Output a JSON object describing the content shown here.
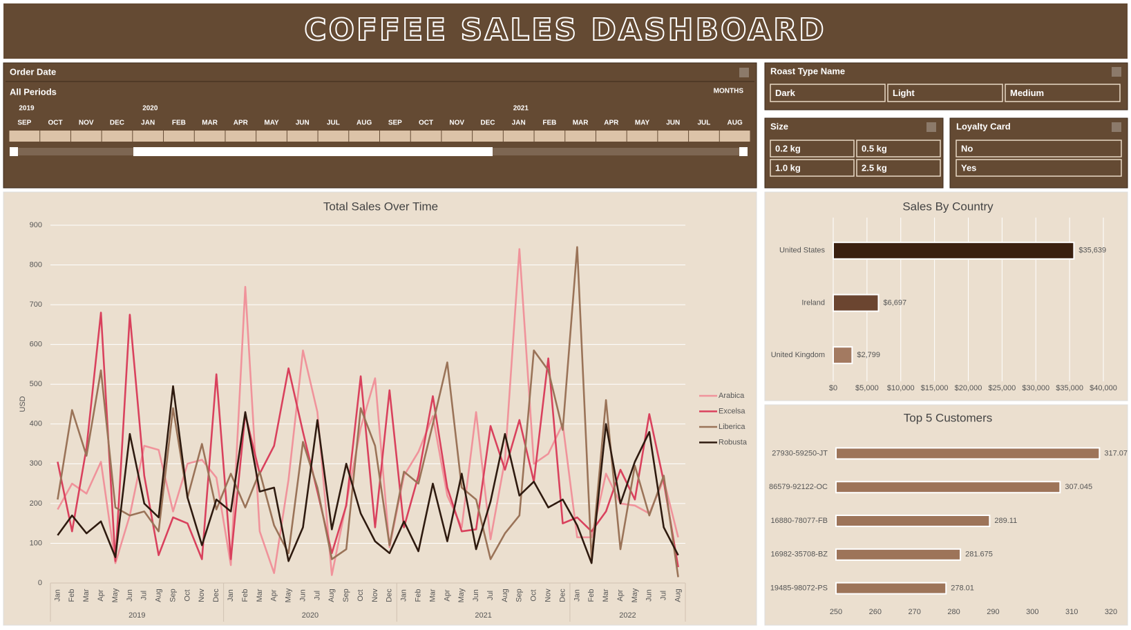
{
  "header": {
    "title": "COFFEE SALES DASHBOARD"
  },
  "timeline": {
    "label": "Order Date",
    "period": "All Periods",
    "unit": "MONTHS",
    "years": [
      "2019",
      "2020",
      "2021"
    ],
    "months": [
      "SEP",
      "OCT",
      "NOV",
      "DEC",
      "JAN",
      "FEB",
      "MAR",
      "APR",
      "MAY",
      "JUN",
      "JUL",
      "AUG",
      "SEP",
      "OCT",
      "NOV",
      "DEC",
      "JAN",
      "FEB",
      "MAR",
      "APR",
      "MAY",
      "JUN",
      "JUL",
      "AUG"
    ]
  },
  "slicers": {
    "roast": {
      "title": "Roast Type Name",
      "items": [
        "Dark",
        "Light",
        "Medium"
      ]
    },
    "size": {
      "title": "Size",
      "items": [
        "0.2 kg",
        "0.5 kg",
        "1.0 kg",
        "2.5 kg"
      ]
    },
    "loyalty": {
      "title": "Loyalty Card",
      "items": [
        "No",
        "Yes"
      ]
    }
  },
  "chart_data": [
    {
      "type": "line",
      "title": "Total Sales Over Time",
      "y_label": "USD",
      "categories": [
        "Jan",
        "Feb",
        "Mar",
        "Apr",
        "May",
        "Jun",
        "Jul",
        "Aug",
        "Sep",
        "Oct",
        "Nov",
        "Dec",
        "Jan",
        "Feb",
        "Mar",
        "Apr",
        "May",
        "Jun",
        "Jul",
        "Aug",
        "Sep",
        "Oct",
        "Nov",
        "Dec",
        "Jan",
        "Feb",
        "Mar",
        "Apr",
        "May",
        "Jun",
        "Jul",
        "Aug",
        "Sep",
        "Oct",
        "Nov",
        "Dec",
        "Jan",
        "Feb",
        "Mar",
        "Apr",
        "May",
        "Jun",
        "Jul",
        "Aug"
      ],
      "years": [
        "2019",
        "2020",
        "2021",
        "2022"
      ],
      "ylim": [
        0,
        900
      ],
      "yticks": [
        0,
        100,
        200,
        300,
        400,
        500,
        600,
        700,
        800,
        900
      ],
      "grid": true,
      "legend": "right",
      "series": [
        {
          "name": "Arabica",
          "color": "#f0939b",
          "values": [
            185,
            250,
            225,
            305,
            50,
            170,
            345,
            335,
            180,
            300,
            310,
            265,
            45,
            745,
            130,
            25,
            260,
            585,
            430,
            20,
            200,
            390,
            515,
            90,
            270,
            330,
            420,
            220,
            140,
            430,
            110,
            310,
            840,
            300,
            325,
            400,
            115,
            115,
            275,
            200,
            195,
            175,
            260,
            115
          ]
        },
        {
          "name": "Excelsa",
          "color": "#d9415d",
          "values": [
            305,
            130,
            340,
            680,
            55,
            675,
            270,
            70,
            165,
            150,
            60,
            525,
            60,
            425,
            275,
            345,
            540,
            380,
            230,
            75,
            195,
            520,
            140,
            485,
            140,
            270,
            470,
            240,
            130,
            135,
            395,
            285,
            410,
            255,
            565,
            150,
            165,
            130,
            180,
            285,
            210,
            425,
            255,
            40
          ]
        },
        {
          "name": "Liberica",
          "color": "#9a7358",
          "values": [
            210,
            435,
            320,
            535,
            190,
            170,
            180,
            130,
            440,
            215,
            350,
            185,
            275,
            190,
            280,
            145,
            75,
            355,
            240,
            60,
            85,
            440,
            345,
            95,
            280,
            250,
            400,
            555,
            240,
            210,
            60,
            125,
            170,
            585,
            535,
            385,
            845,
            60,
            460,
            85,
            295,
            170,
            270,
            15
          ]
        },
        {
          "name": "Robusta",
          "color": "#2e1a0f",
          "values": [
            120,
            170,
            125,
            155,
            65,
            375,
            200,
            165,
            495,
            215,
            95,
            210,
            180,
            430,
            230,
            240,
            55,
            140,
            410,
            135,
            300,
            175,
            105,
            75,
            155,
            80,
            250,
            105,
            275,
            85,
            205,
            375,
            220,
            255,
            190,
            210,
            145,
            50,
            400,
            200,
            305,
            380,
            140,
            70
          ]
        }
      ]
    },
    {
      "type": "bar",
      "orientation": "horizontal",
      "title": "Sales By Country",
      "categories": [
        "United States",
        "Ireland",
        "United Kingdom"
      ],
      "values": [
        35639,
        6697,
        2799
      ],
      "value_labels": [
        "$35,639",
        "$6,697",
        "$2,799"
      ],
      "colors": [
        "#3a2010",
        "#6b4530",
        "#a37a61"
      ],
      "grid": true,
      "xlim": [
        0,
        40000
      ],
      "xticks": [
        {
          "value": 0,
          "label": "$0"
        },
        {
          "value": 5000,
          "label": "$5,000"
        },
        {
          "value": 10000,
          "label": "$10,000"
        },
        {
          "value": 15000,
          "label": "$15,000"
        },
        {
          "value": 20000,
          "label": "$20,000"
        },
        {
          "value": 25000,
          "label": "$25,000"
        },
        {
          "value": 30000,
          "label": "$30,000"
        },
        {
          "value": 35000,
          "label": "$35,000"
        },
        {
          "value": 40000,
          "label": "$40,000"
        }
      ]
    },
    {
      "type": "bar",
      "orientation": "horizontal",
      "title": "Top 5 Customers",
      "categories": [
        "27930-59250-JT",
        "86579-92122-OC",
        "16880-78077-FB",
        "16982-35708-BZ",
        "19485-98072-PS"
      ],
      "values": [
        317.07,
        307.045,
        289.11,
        281.675,
        278.01
      ],
      "color": "#9d7459",
      "grid": false,
      "xlim": [
        250,
        320
      ],
      "xticks": [
        250,
        260,
        270,
        280,
        290,
        300,
        310,
        320
      ]
    }
  ]
}
